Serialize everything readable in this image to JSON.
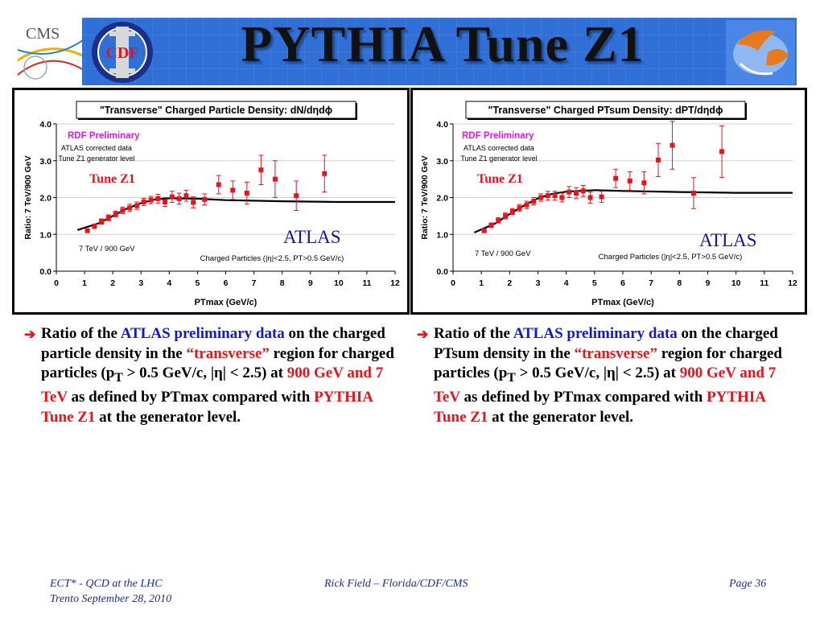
{
  "slide": {
    "title": "PYTHIA Tune Z1",
    "logos": {
      "left1": "cms-logo",
      "left1_text": "CMS",
      "left2": "cdf-logo",
      "left2_text": "CDF",
      "right": "uf-logo"
    }
  },
  "colors": {
    "data_points": "#e8141b",
    "rdf": "#e21ce2",
    "blue_text": "#1414e0",
    "footer": "#1c2f8c",
    "banner": "#2f6fd6"
  },
  "bullets": {
    "left": {
      "icon": "arrow-right-icon",
      "p1": "Ratio of the ",
      "p2": "ATLAS preliminary data",
      "p3": " on the charged particle density in the ",
      "p4": "“transverse”",
      "p5": " region for charged particles (p",
      "p5sub": "T",
      "p6": " > 0.5 GeV/c, |η| < 2.5) at ",
      "p7": "900 GeV and 7 TeV",
      "p8": " as defined by PTmax compared with ",
      "p9": "PYTHIA Tune Z1",
      "p10": " at the generator level."
    },
    "right": {
      "icon": "arrow-right-icon",
      "p1": "Ratio of the ",
      "p2": "ATLAS preliminary data",
      "p3": " on the charged PTsum density in the ",
      "p4": "“transverse”",
      "p5": " region for charged particles (p",
      "p5sub": "T",
      "p6": " > 0.5 GeV/c, |η| < 2.5) at ",
      "p7": "900 GeV and 7 TeV",
      "p8": " as defined by PTmax compared with ",
      "p9": "PYTHIA Tune Z1",
      "p10": " at the generator level."
    }
  },
  "footer": {
    "left1": "ECT* - QCD at the LHC",
    "left2": "Trento  September 28, 2010",
    "center": "Rick Field – Florida/CDF/CMS",
    "right": "Page 36"
  },
  "chart_data": [
    {
      "type": "scatter",
      "title": "\"Transverse\" Charged Particle Density: dN/dηdϕ",
      "xlabel": "PTmax (GeV/c)",
      "ylabel": "Ratio: 7 TeV/900 GeV",
      "xlim": [
        0,
        12
      ],
      "ylim": [
        0,
        4
      ],
      "xticks": [
        "0",
        "1",
        "2",
        "3",
        "4",
        "5",
        "6",
        "7",
        "8",
        "9",
        "10",
        "11",
        "12"
      ],
      "yticks": [
        "0.0",
        "1.0",
        "2.0",
        "3.0",
        "4.0"
      ],
      "grid": true,
      "annotations": {
        "rdf": "RDF Preliminary",
        "atlas_corr1": "ATLAS corrected data",
        "atlas_corr2": "Tune Z1 generator level",
        "tune": "Tune Z1",
        "energy": "7 TeV / 900 GeV",
        "cuts": "Charged Particles (|η|<2.5, PT>0.5 GeV/c)",
        "atlas": "ATLAS"
      },
      "series": [
        {
          "kind": "points",
          "color": "#e8141b",
          "points": [
            {
              "x": 1.1,
              "y": 1.1,
              "err": 0.05
            },
            {
              "x": 1.35,
              "y": 1.22,
              "err": 0.06
            },
            {
              "x": 1.6,
              "y": 1.35,
              "err": 0.07
            },
            {
              "x": 1.85,
              "y": 1.45,
              "err": 0.08
            },
            {
              "x": 2.1,
              "y": 1.55,
              "err": 0.08
            },
            {
              "x": 2.35,
              "y": 1.65,
              "err": 0.09
            },
            {
              "x": 2.6,
              "y": 1.72,
              "err": 0.1
            },
            {
              "x": 2.85,
              "y": 1.78,
              "err": 0.1
            },
            {
              "x": 3.1,
              "y": 1.88,
              "err": 0.1
            },
            {
              "x": 3.35,
              "y": 1.93,
              "err": 0.1
            },
            {
              "x": 3.6,
              "y": 1.97,
              "err": 0.12
            },
            {
              "x": 3.85,
              "y": 1.88,
              "err": 0.12
            },
            {
              "x": 4.1,
              "y": 2.02,
              "err": 0.15
            },
            {
              "x": 4.35,
              "y": 1.97,
              "err": 0.15
            },
            {
              "x": 4.6,
              "y": 2.05,
              "err": 0.15
            },
            {
              "x": 4.85,
              "y": 1.87,
              "err": 0.15
            },
            {
              "x": 5.25,
              "y": 1.95,
              "err": 0.15
            },
            {
              "x": 5.75,
              "y": 2.35,
              "err": 0.25
            },
            {
              "x": 6.25,
              "y": 2.2,
              "err": 0.25
            },
            {
              "x": 6.75,
              "y": 2.12,
              "err": 0.3
            },
            {
              "x": 7.25,
              "y": 2.75,
              "err": 0.4
            },
            {
              "x": 7.75,
              "y": 2.5,
              "err": 0.5
            },
            {
              "x": 8.5,
              "y": 2.05,
              "err": 0.4
            },
            {
              "x": 9.5,
              "y": 2.65,
              "err": 0.5
            }
          ]
        },
        {
          "kind": "line",
          "color": "#000000",
          "points": [
            {
              "x": 0.75,
              "y": 1.12
            },
            {
              "x": 1.5,
              "y": 1.3
            },
            {
              "x": 2.0,
              "y": 1.5
            },
            {
              "x": 2.5,
              "y": 1.7
            },
            {
              "x": 3.0,
              "y": 1.85
            },
            {
              "x": 3.5,
              "y": 1.95
            },
            {
              "x": 4.0,
              "y": 1.98
            },
            {
              "x": 5.0,
              "y": 1.97
            },
            {
              "x": 6.0,
              "y": 1.93
            },
            {
              "x": 8.0,
              "y": 1.9
            },
            {
              "x": 10.0,
              "y": 1.88
            },
            {
              "x": 12.0,
              "y": 1.88
            }
          ]
        }
      ]
    },
    {
      "type": "scatter",
      "title": "\"Transverse\" Charged PTsum Density: dPT/dηdϕ",
      "xlabel": "PTmax (GeV/c)",
      "ylabel": "Ratio: 7 TeV/900 GeV",
      "xlim": [
        0,
        12
      ],
      "ylim": [
        0,
        4
      ],
      "xticks": [
        "0",
        "1",
        "2",
        "3",
        "4",
        "5",
        "6",
        "7",
        "8",
        "9",
        "10",
        "11",
        "12"
      ],
      "yticks": [
        "0.0",
        "1.0",
        "2.0",
        "3.0",
        "4.0"
      ],
      "grid": true,
      "annotations": {
        "rdf": "RDF Preliminary",
        "atlas_corr1": "ATLAS corrected data",
        "atlas_corr2": "Tune Z1 generator level",
        "tune": "Tune Z1",
        "energy": "7 TeV / 900 GeV",
        "cuts": "Charged Particles (|η|<2.5, PT>0.5 GeV/c)",
        "atlas": "ATLAS"
      },
      "series": [
        {
          "kind": "points",
          "color": "#e8141b",
          "points": [
            {
              "x": 1.1,
              "y": 1.1,
              "err": 0.05
            },
            {
              "x": 1.35,
              "y": 1.25,
              "err": 0.06
            },
            {
              "x": 1.6,
              "y": 1.38,
              "err": 0.07
            },
            {
              "x": 1.85,
              "y": 1.5,
              "err": 0.08
            },
            {
              "x": 2.1,
              "y": 1.62,
              "err": 0.08
            },
            {
              "x": 2.35,
              "y": 1.72,
              "err": 0.09
            },
            {
              "x": 2.6,
              "y": 1.8,
              "err": 0.1
            },
            {
              "x": 2.85,
              "y": 1.9,
              "err": 0.1
            },
            {
              "x": 3.1,
              "y": 2.0,
              "err": 0.1
            },
            {
              "x": 3.35,
              "y": 2.05,
              "err": 0.12
            },
            {
              "x": 3.6,
              "y": 2.05,
              "err": 0.12
            },
            {
              "x": 3.85,
              "y": 2.0,
              "err": 0.12
            },
            {
              "x": 4.1,
              "y": 2.15,
              "err": 0.15
            },
            {
              "x": 4.35,
              "y": 2.12,
              "err": 0.15
            },
            {
              "x": 4.6,
              "y": 2.18,
              "err": 0.15
            },
            {
              "x": 4.85,
              "y": 2.0,
              "err": 0.15
            },
            {
              "x": 5.25,
              "y": 2.02,
              "err": 0.15
            },
            {
              "x": 5.75,
              "y": 2.52,
              "err": 0.25
            },
            {
              "x": 6.25,
              "y": 2.45,
              "err": 0.25
            },
            {
              "x": 6.75,
              "y": 2.4,
              "err": 0.3
            },
            {
              "x": 7.25,
              "y": 3.02,
              "err": 0.45
            },
            {
              "x": 7.75,
              "y": 3.42,
              "err": 0.65
            },
            {
              "x": 8.5,
              "y": 2.12,
              "err": 0.42
            },
            {
              "x": 9.5,
              "y": 3.25,
              "err": 0.7
            }
          ]
        },
        {
          "kind": "line",
          "color": "#000000",
          "points": [
            {
              "x": 0.75,
              "y": 1.05
            },
            {
              "x": 1.5,
              "y": 1.3
            },
            {
              "x": 2.0,
              "y": 1.55
            },
            {
              "x": 2.5,
              "y": 1.78
            },
            {
              "x": 3.0,
              "y": 1.98
            },
            {
              "x": 3.5,
              "y": 2.1
            },
            {
              "x": 4.0,
              "y": 2.16
            },
            {
              "x": 5.0,
              "y": 2.2
            },
            {
              "x": 6.0,
              "y": 2.18
            },
            {
              "x": 8.0,
              "y": 2.15
            },
            {
              "x": 10.0,
              "y": 2.13
            },
            {
              "x": 12.0,
              "y": 2.13
            }
          ]
        }
      ]
    }
  ]
}
